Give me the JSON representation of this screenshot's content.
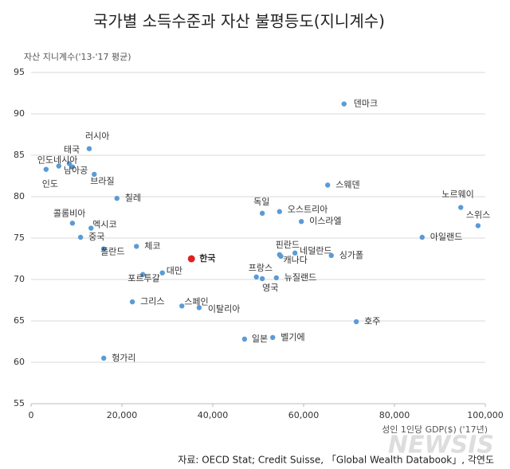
{
  "chart_data": {
    "type": "scatter",
    "title": "국가별 소득수준과 자산 불평등도(지니계수)",
    "y_label": "자산 지니계수('13-'17 평균)",
    "x_label": "성인 1인당 GDP($) ('17년)",
    "source": "자료: OECD Stat; Credit Suisse, 「Global Wealth Databook」, 각연도",
    "watermark": "NEWSIS",
    "color": "#5b9bd5",
    "grid": true,
    "xlim": [
      0,
      100000
    ],
    "xticks": [
      0,
      {
        "value": 20000,
        "label": "20,000"
      },
      {
        "value": 40000,
        "label": "40,000"
      },
      {
        "value": 60000,
        "label": "60,000"
      },
      {
        "value": 80000,
        "label": "80,000"
      },
      {
        "value": 100000,
        "label": "100,000"
      }
    ],
    "ylim": [
      55,
      95
    ],
    "yticks": [
      55,
      60,
      65,
      70,
      75,
      80,
      85,
      90,
      95
    ],
    "points": [
      {
        "label": "덴마크",
        "x": 68900,
        "y": 91.2
      },
      {
        "label": "러시아",
        "x": 12800,
        "y": 85.8
      },
      {
        "label": "태국",
        "x": 8400,
        "y": 84.0
      },
      {
        "label": "인도네시아",
        "x": 6100,
        "y": 83.7
      },
      {
        "label": "남아공",
        "x": 9100,
        "y": 83.6
      },
      {
        "label": "인도",
        "x": 3300,
        "y": 83.3
      },
      {
        "label": "브라질",
        "x": 13900,
        "y": 82.7
      },
      {
        "label": "칠레",
        "x": 18900,
        "y": 79.8
      },
      {
        "label": "콜롬비아",
        "x": 9100,
        "y": 76.8
      },
      {
        "label": "멕시코",
        "x": 13200,
        "y": 76.2
      },
      {
        "label": "중국",
        "x": 10900,
        "y": 75.1
      },
      {
        "label": "폴란드",
        "x": 16000,
        "y": 73.7
      },
      {
        "label": "체코",
        "x": 23200,
        "y": 74.0
      },
      {
        "label": "한국",
        "x": 35300,
        "y": 72.5,
        "color": "#e02020"
      },
      {
        "label": "포르투갈",
        "x": 24600,
        "y": 70.6
      },
      {
        "label": "대만",
        "x": 28900,
        "y": 70.8
      },
      {
        "label": "그리스",
        "x": 22300,
        "y": 67.3
      },
      {
        "label": "스페인",
        "x": 33200,
        "y": 66.8
      },
      {
        "label": "이탈리아",
        "x": 37000,
        "y": 66.6
      },
      {
        "label": "헝가리",
        "x": 16000,
        "y": 60.5
      },
      {
        "label": "독일",
        "x": 50900,
        "y": 78.0
      },
      {
        "label": "오스트리아",
        "x": 54700,
        "y": 78.2
      },
      {
        "label": "이스라엘",
        "x": 59500,
        "y": 77.0
      },
      {
        "label": "스웨덴",
        "x": 65300,
        "y": 81.4
      },
      {
        "label": "핀란드",
        "x": 54700,
        "y": 73.0
      },
      {
        "label": "네덜란드",
        "x": 58100,
        "y": 73.2
      },
      {
        "label": "캐나다",
        "x": 55000,
        "y": 72.8
      },
      {
        "label": "싱가폴",
        "x": 66100,
        "y": 72.9
      },
      {
        "label": "프랑스",
        "x": 49600,
        "y": 70.3
      },
      {
        "label": "영국",
        "x": 50900,
        "y": 70.1
      },
      {
        "label": "뉴질랜드",
        "x": 54000,
        "y": 70.2
      },
      {
        "label": "호주",
        "x": 71600,
        "y": 64.9
      },
      {
        "label": "일본",
        "x": 47000,
        "y": 62.8
      },
      {
        "label": "벨기에",
        "x": 53200,
        "y": 63.0
      },
      {
        "label": "노르웨이",
        "x": 94600,
        "y": 78.7
      },
      {
        "label": "스위스",
        "x": 98400,
        "y": 76.5
      },
      {
        "label": "아일랜드",
        "x": 86100,
        "y": 75.1
      }
    ]
  }
}
